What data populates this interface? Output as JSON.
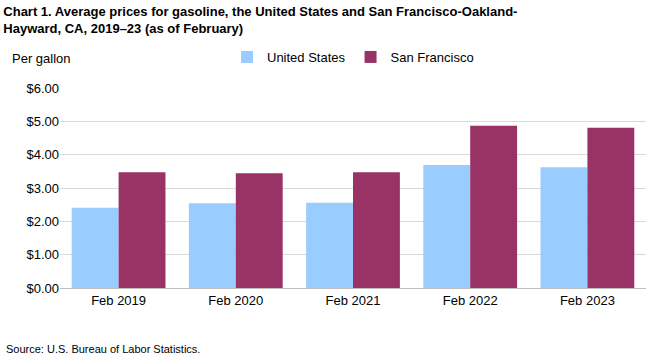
{
  "chart_data": {
    "type": "bar",
    "title": "Chart 1. Average prices for gasoline, the United States and San Francisco-Oakland-Hayward, CA, 2019–23 (as of February)",
    "ylabel": "Per gallon",
    "source": "Source: U.S. Bureau of Labor Statistics.",
    "categories": [
      "Feb 2019",
      "Feb 2020",
      "Feb 2021",
      "Feb 2022",
      "Feb 2023"
    ],
    "series": [
      {
        "name": "United States",
        "color": "#99ccff",
        "values": [
          2.41,
          2.54,
          2.56,
          3.69,
          3.62
        ]
      },
      {
        "name": "San Francisco",
        "color": "#993366",
        "values": [
          3.47,
          3.44,
          3.47,
          4.87,
          4.81
        ]
      }
    ],
    "ylim": [
      0,
      6
    ],
    "yticks": [
      {
        "value": 0,
        "label": "$0.00"
      },
      {
        "value": 1,
        "label": "$1.00"
      },
      {
        "value": 2,
        "label": "$2.00"
      },
      {
        "value": 3,
        "label": "$3.00"
      },
      {
        "value": 4,
        "label": "$4.00"
      },
      {
        "value": 5,
        "label": "$5.00"
      },
      {
        "value": 6,
        "label": "$6.00"
      }
    ],
    "grid": true,
    "legend": "top"
  }
}
